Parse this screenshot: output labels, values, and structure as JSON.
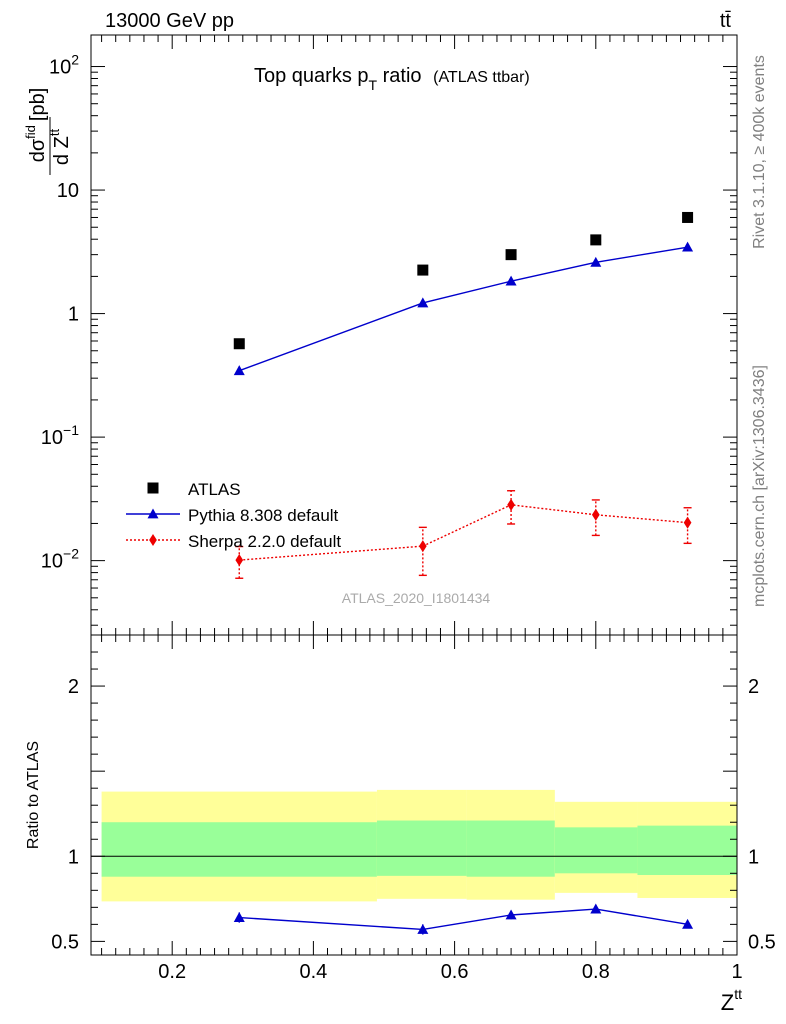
{
  "header": {
    "energy_label": "13000 GeV pp",
    "process_label": "tt̄"
  },
  "side_labels": {
    "rivet": "Rivet 3.1.10, ≥ 400k events",
    "mcplots": "mcplots.cern.ch [arXiv:1306.3436]"
  },
  "chart_data": [
    {
      "type": "scatter",
      "panel": "main",
      "title": "Top quarks p_T ratio",
      "title_parts": {
        "main": "Top quarks p",
        "sub": "T",
        "rest": " ratio",
        "small": "(ATLAS ttbar)"
      },
      "watermark": "ATLAS_2020_I1801434",
      "ylabel": "dσ^fid / d Z^tt [pb]",
      "ylabel_parts": {
        "d1": "d",
        "sigma": "dσ",
        "sup": "fid",
        "d2": "d Z",
        "sup2": "tt",
        "unit": "[pb]"
      },
      "yscale": "log",
      "xlim": [
        0.085,
        1.0
      ],
      "ylim": [
        0.0025,
        180
      ],
      "y_tick_labels": [
        {
          "value": 0.01,
          "base": "10",
          "exp": "−2"
        },
        {
          "value": 0.1,
          "base": "10",
          "exp": "−1"
        },
        {
          "value": 1,
          "base": "1",
          "exp": ""
        },
        {
          "value": 10,
          "base": "10",
          "exp": ""
        },
        {
          "value": 100,
          "base": "10",
          "exp": "2"
        }
      ],
      "x": [
        0.295,
        0.555,
        0.68,
        0.8,
        0.93
      ],
      "series": [
        {
          "name": "ATLAS",
          "marker": "square",
          "color": "#000000",
          "values": [
            0.57,
            2.25,
            3.0,
            3.95,
            6.0
          ]
        },
        {
          "name": "Pythia 8.308 default",
          "marker": "triangle",
          "line": "solid",
          "color": "#0000cc",
          "values": [
            0.345,
            1.22,
            1.83,
            2.6,
            3.45
          ]
        },
        {
          "name": "Sherpa 2.2.0 default",
          "marker": "diamond",
          "line": "dotted",
          "color": "#ee0000",
          "values": [
            0.0101,
            0.0131,
            0.0283,
            0.0235,
            0.0203
          ],
          "err_low": [
            0.0029,
            0.0055,
            0.0085,
            0.0075,
            0.0065
          ],
          "err_high": [
            0.0029,
            0.0055,
            0.0085,
            0.0075,
            0.0065
          ]
        }
      ],
      "legend_position": "bottom-left"
    },
    {
      "type": "line",
      "panel": "ratio",
      "ylabel": "Ratio to ATLAS",
      "xlabel": "Z^tt",
      "xlabel_parts": {
        "base": "Z",
        "sup": "tt"
      },
      "xlim": [
        0.085,
        1.0
      ],
      "ylim": [
        0.42,
        2.3
      ],
      "x_ticks": [
        0.2,
        0.4,
        0.6,
        0.8,
        1
      ],
      "x_tick_labels": [
        "0.2",
        "0.4",
        "0.6",
        "0.8",
        "1"
      ],
      "y_ticks": [
        0.5,
        1,
        2
      ],
      "y_tick_labels": [
        "0.5",
        "1",
        "2"
      ],
      "bands": [
        {
          "x0": 0.1,
          "x1": 0.49,
          "yellow": [
            0.735,
            1.38
          ],
          "green": [
            0.88,
            1.2
          ]
        },
        {
          "x0": 0.49,
          "x1": 0.617,
          "yellow": [
            0.75,
            1.39
          ],
          "green": [
            0.885,
            1.21
          ]
        },
        {
          "x0": 0.617,
          "x1": 0.742,
          "yellow": [
            0.745,
            1.39
          ],
          "green": [
            0.88,
            1.21
          ]
        },
        {
          "x0": 0.742,
          "x1": 0.859,
          "yellow": [
            0.785,
            1.32
          ],
          "green": [
            0.9,
            1.17
          ]
        },
        {
          "x0": 0.859,
          "x1": 1.0,
          "yellow": [
            0.755,
            1.32
          ],
          "green": [
            0.89,
            1.18
          ]
        }
      ],
      "reference_line": 1,
      "series": [
        {
          "name": "Pythia 8.308 default",
          "marker": "triangle",
          "line": "solid",
          "color": "#0000cc",
          "x": [
            0.295,
            0.555,
            0.68,
            0.8,
            0.93
          ],
          "values": [
            0.64,
            0.57,
            0.655,
            0.69,
            0.6
          ],
          "err": [
            0.03,
            0.03,
            0.025,
            0.02,
            0.015
          ]
        }
      ]
    }
  ]
}
